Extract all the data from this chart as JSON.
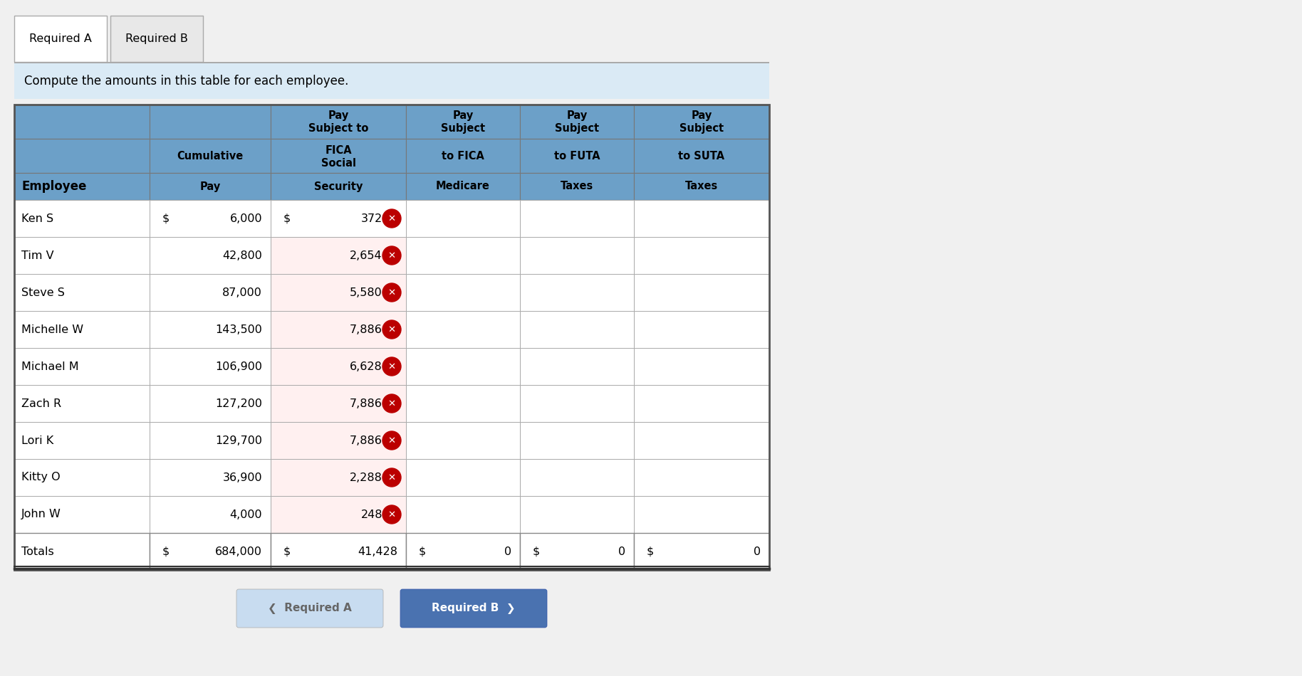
{
  "tab1": "Required A",
  "tab2": "Required B",
  "instruction": "Compute the amounts in this table for each employee.",
  "employees": [
    {
      "name": "Ken S",
      "cum_dollar": true,
      "cum_pay": "6,000",
      "fica_dollar": true,
      "fica_ss": "372",
      "has_x": true
    },
    {
      "name": "Tim V",
      "cum_dollar": false,
      "cum_pay": "42,800",
      "fica_dollar": false,
      "fica_ss": "2,654",
      "has_x": true
    },
    {
      "name": "Steve S",
      "cum_dollar": false,
      "cum_pay": "87,000",
      "fica_dollar": false,
      "fica_ss": "5,580",
      "has_x": true
    },
    {
      "name": "Michelle W",
      "cum_dollar": false,
      "cum_pay": "143,500",
      "fica_dollar": false,
      "fica_ss": "7,886",
      "has_x": true
    },
    {
      "name": "Michael M",
      "cum_dollar": false,
      "cum_pay": "106,900",
      "fica_dollar": false,
      "fica_ss": "6,628",
      "has_x": true
    },
    {
      "name": "Zach R",
      "cum_dollar": false,
      "cum_pay": "127,200",
      "fica_dollar": false,
      "fica_ss": "7,886",
      "has_x": true
    },
    {
      "name": "Lori K",
      "cum_dollar": false,
      "cum_pay": "129,700",
      "fica_dollar": false,
      "fica_ss": "7,886",
      "has_x": true
    },
    {
      "name": "Kitty O",
      "cum_dollar": false,
      "cum_pay": "36,900",
      "fica_dollar": false,
      "fica_ss": "2,288",
      "has_x": true
    },
    {
      "name": "John W",
      "cum_dollar": false,
      "cum_pay": "4,000",
      "fica_dollar": false,
      "fica_ss": "248",
      "has_x": true
    }
  ],
  "totals": {
    "label": "Totals",
    "cum_pay": "684,000",
    "fica_ss": "41,428",
    "fica_med": "0",
    "futa": "0",
    "suta": "0"
  },
  "header_bg": "#6CA0C8",
  "header_text_color": "#000000",
  "row_bg_white": "#FFFFFF",
  "row_bg_pink": "#FFF0F0",
  "instruction_bg": "#DAEAF5",
  "tab1_bg": "#FFFFFF",
  "tab2_bg": "#E8E8E8",
  "btn_left_bg": "#C8DCF0",
  "btn_left_text": "#666666",
  "btn_right_bg": "#4A72B0",
  "btn_right_text": "#FFFFFF",
  "x_color": "#BB0000",
  "border_color": "#999999",
  "thick_border": "#555555"
}
